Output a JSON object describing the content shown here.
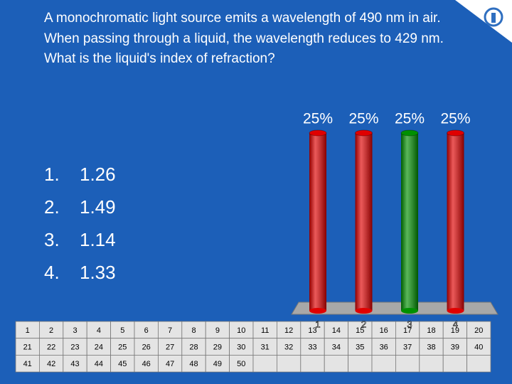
{
  "question": "A monochromatic light source emits a wavelength of 490 nm in air. When passing through a liquid, the wavelength reduces to 429 nm. What is the liquid's index of refraction?",
  "answers": [
    {
      "number": "1.",
      "text": "1.26"
    },
    {
      "number": "2.",
      "text": "1.49"
    },
    {
      "number": "3.",
      "text": "1.14"
    },
    {
      "number": "4.",
      "text": "1.33"
    }
  ],
  "chart_data": {
    "type": "bar",
    "categories": [
      "1",
      "2",
      "3",
      "4"
    ],
    "values": [
      25,
      25,
      25,
      25
    ],
    "value_labels": [
      "25%",
      "25%",
      "25%",
      "25%"
    ],
    "colors": [
      "#e00000",
      "#e00000",
      "#009000",
      "#e00000"
    ]
  },
  "response_grid": [
    [
      "1",
      "2",
      "3",
      "4",
      "5",
      "6",
      "7",
      "8",
      "9",
      "10",
      "11",
      "12",
      "13",
      "14",
      "15",
      "16",
      "17",
      "18",
      "19",
      "20"
    ],
    [
      "21",
      "22",
      "23",
      "24",
      "25",
      "26",
      "27",
      "28",
      "29",
      "30",
      "31",
      "32",
      "33",
      "34",
      "35",
      "36",
      "37",
      "38",
      "39",
      "40"
    ],
    [
      "41",
      "42",
      "43",
      "44",
      "45",
      "46",
      "47",
      "48",
      "49",
      "50"
    ]
  ]
}
